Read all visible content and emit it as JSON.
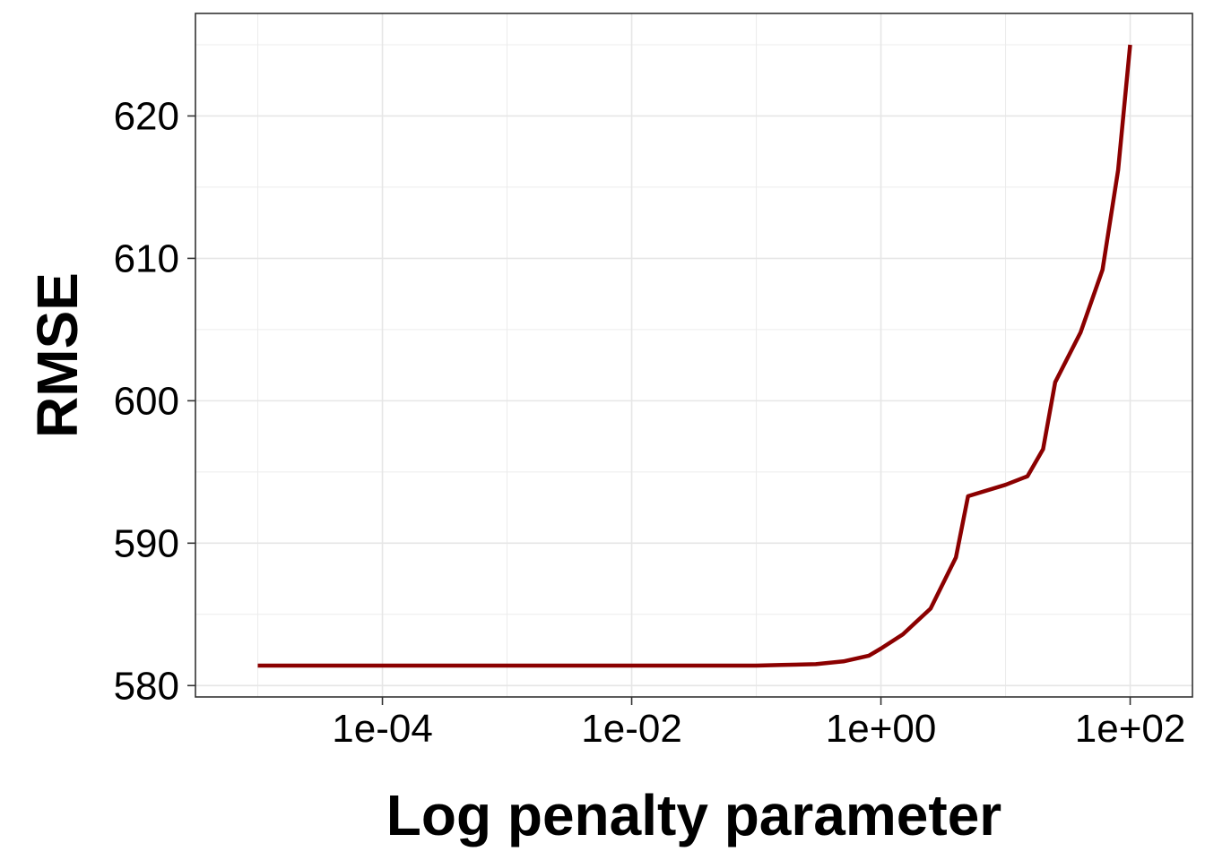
{
  "chart_data": {
    "type": "line",
    "title": "",
    "xlabel": "Log penalty parameter",
    "ylabel": "RMSE",
    "x_scale": "log10",
    "xlim": [
      3.16e-06,
      316
    ],
    "ylim": [
      579.2,
      627.2
    ],
    "grid": true,
    "legend": "none",
    "x_ticks": [
      {
        "value": 0.0001,
        "label": "1e-04"
      },
      {
        "value": 0.01,
        "label": "1e-02"
      },
      {
        "value": 1,
        "label": "1e+00"
      },
      {
        "value": 100,
        "label": "1e+02"
      }
    ],
    "y_ticks": [
      {
        "value": 580,
        "label": "580"
      },
      {
        "value": 590,
        "label": "590"
      },
      {
        "value": 600,
        "label": "600"
      },
      {
        "value": 610,
        "label": "610"
      },
      {
        "value": 620,
        "label": "620"
      }
    ],
    "series": [
      {
        "color": "#8B0000",
        "x": [
          1e-05,
          3e-05,
          0.0001,
          0.001,
          0.01,
          0.1,
          0.16,
          0.3,
          0.5,
          0.8,
          1.0,
          1.5,
          2.5,
          4.0,
          5.0,
          10,
          15,
          20,
          25,
          40,
          60,
          80,
          100
        ],
        "y": [
          581.4,
          581.4,
          581.4,
          581.4,
          581.4,
          581.4,
          581.45,
          581.5,
          581.7,
          582.1,
          582.6,
          583.6,
          585.4,
          589.0,
          593.3,
          594.1,
          594.7,
          596.6,
          601.3,
          604.8,
          609.2,
          616.2,
          625.0
        ]
      }
    ]
  }
}
